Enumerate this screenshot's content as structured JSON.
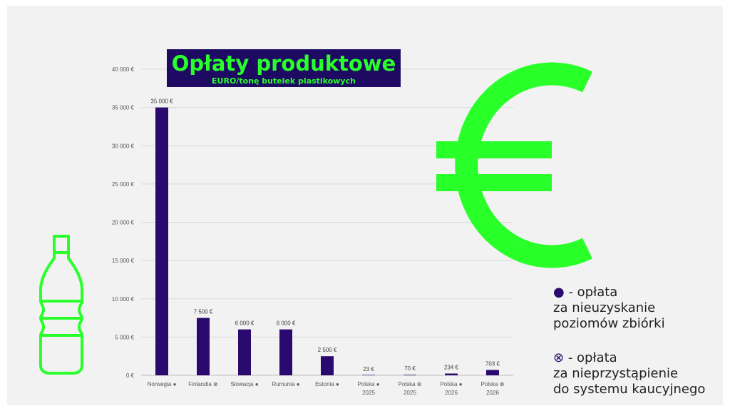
{
  "title": "Opłaty produktowe",
  "subtitle": "EURO/tonę butelek plastikowych",
  "colors": {
    "bar": "#2a0a6e",
    "accent": "#29ff29",
    "title_bg": "#1e0a63",
    "background": "#f2f2f2"
  },
  "icons": [
    "euro-sign-icon",
    "bottle-icon"
  ],
  "legend": {
    "item1": {
      "marker": "●",
      "line1": " - opłata",
      "line2": "za nieuzyskanie",
      "line3": "poziomów zbiórki"
    },
    "item2": {
      "marker": "⊗",
      "line1": " - opłata",
      "line2": "za nieprzystąpienie",
      "line3": "do systemu kaucyjnego"
    }
  },
  "chart_data": {
    "type": "bar",
    "title": "Opłaty produktowe",
    "subtitle": "EURO/tonę butelek plastikowych",
    "categories": [
      [
        "Norwegia ●"
      ],
      [
        "Finlandia ⊗"
      ],
      [
        "Słowacja ●"
      ],
      [
        "Rumunia ●"
      ],
      [
        "Estonia ●"
      ],
      [
        "Polska ●",
        "2025"
      ],
      [
        "Polska ⊗",
        "2025"
      ],
      [
        "Polska ●",
        "2026"
      ],
      [
        "Polska ⊗",
        "2026"
      ]
    ],
    "values": [
      35000,
      7500,
      6000,
      6000,
      2500,
      23,
      70,
      234,
      703
    ],
    "value_labels": [
      "35 000 €",
      "7 500 €",
      "6 000 €",
      "6 000 €",
      "2 500 €",
      "23 €",
      "70 €",
      "234 €",
      "703 €"
    ],
    "yticks": [
      0,
      5000,
      10000,
      15000,
      20000,
      25000,
      30000,
      35000,
      40000
    ],
    "ytick_labels": [
      "0 €",
      "5 000 €",
      "10 000 €",
      "15 000 €",
      "20 000 €",
      "25 000 €",
      "30 000 €",
      "35 000 €",
      "40 000 €"
    ],
    "ylim": [
      0,
      40000
    ],
    "grid": true
  }
}
